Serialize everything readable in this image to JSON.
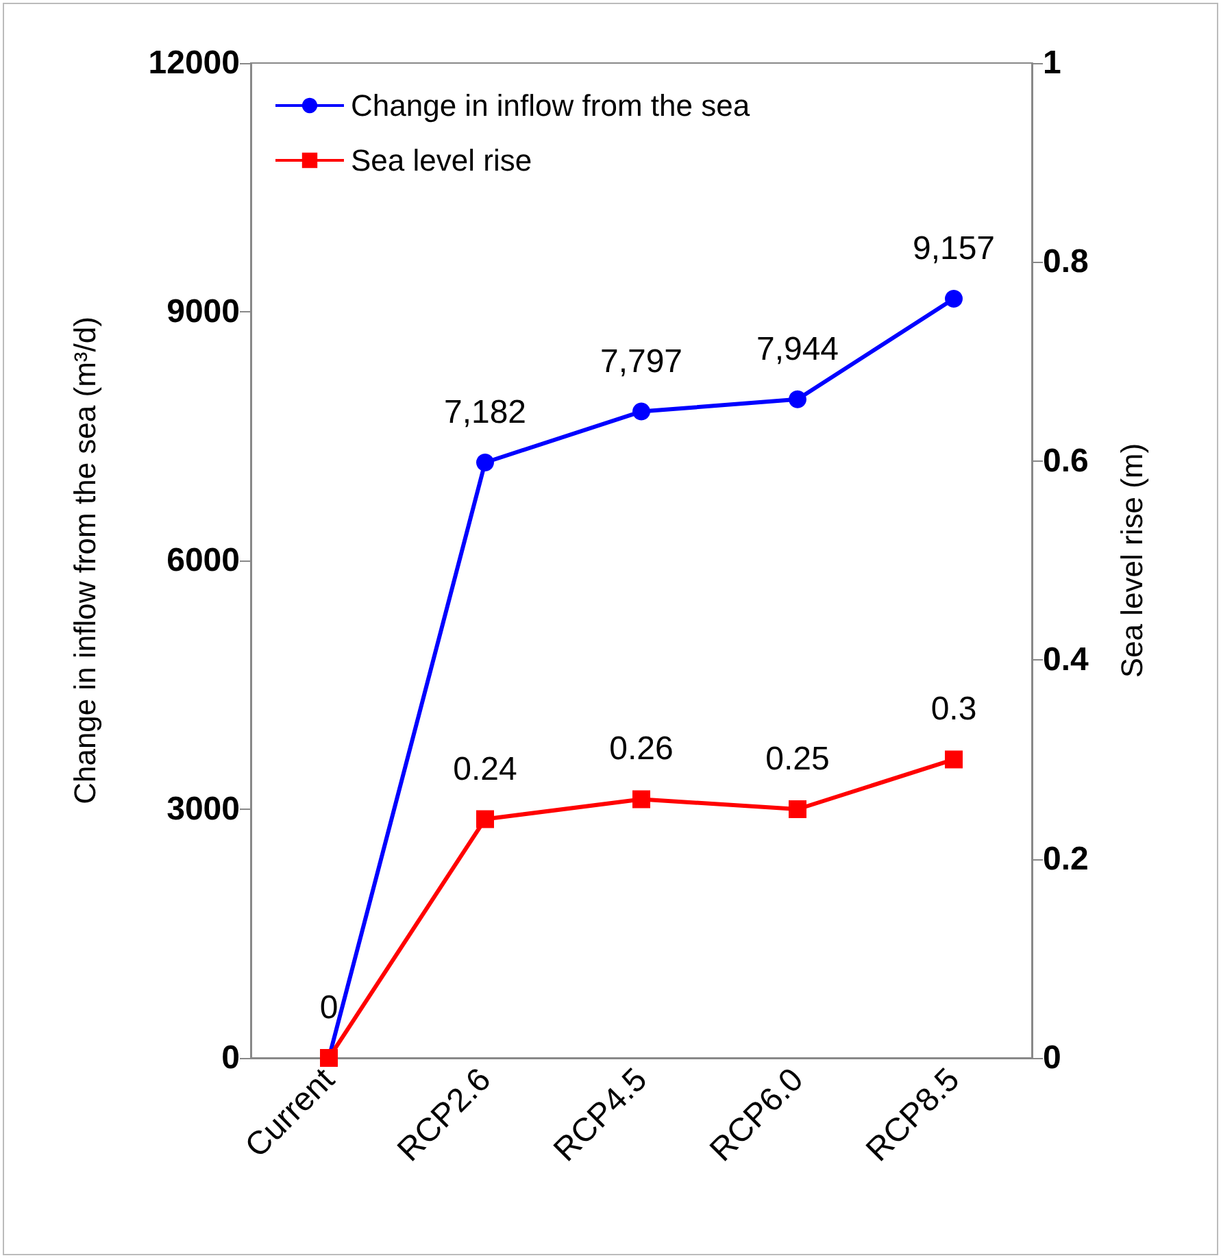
{
  "chart_data": {
    "type": "line",
    "categories": [
      "Current",
      "RCP2.6",
      "RCP4.5",
      "RCP6.0",
      "RCP8.5"
    ],
    "ylabel": "Change in inflow from the sea (m³/d)",
    "y2label": "Sea level rise (m)",
    "ylim": [
      0,
      12000
    ],
    "yticks": [
      0,
      3000,
      6000,
      9000,
      12000
    ],
    "y2lim": [
      0,
      1
    ],
    "y2ticks": [
      0,
      0.2,
      0.4,
      0.6,
      0.8,
      1
    ],
    "series": [
      {
        "name": "Change in inflow from the sea",
        "color": "#0000ff",
        "marker": "circle",
        "values": [
          0,
          7182,
          7797,
          7944,
          9157
        ],
        "value_labels": [
          "0",
          "7,182",
          "7,797",
          "7,944",
          "9,157"
        ]
      },
      {
        "name": "Sea level rise",
        "color": "#ff0000",
        "marker": "square",
        "axis": "y2",
        "values": [
          0,
          0.24,
          0.26,
          0.25,
          0.3
        ],
        "value_labels": [
          null,
          "0.24",
          "0.26",
          "0.25",
          "0.3"
        ]
      }
    ],
    "legend": "top left",
    "grid": false,
    "line_style": "solid"
  }
}
